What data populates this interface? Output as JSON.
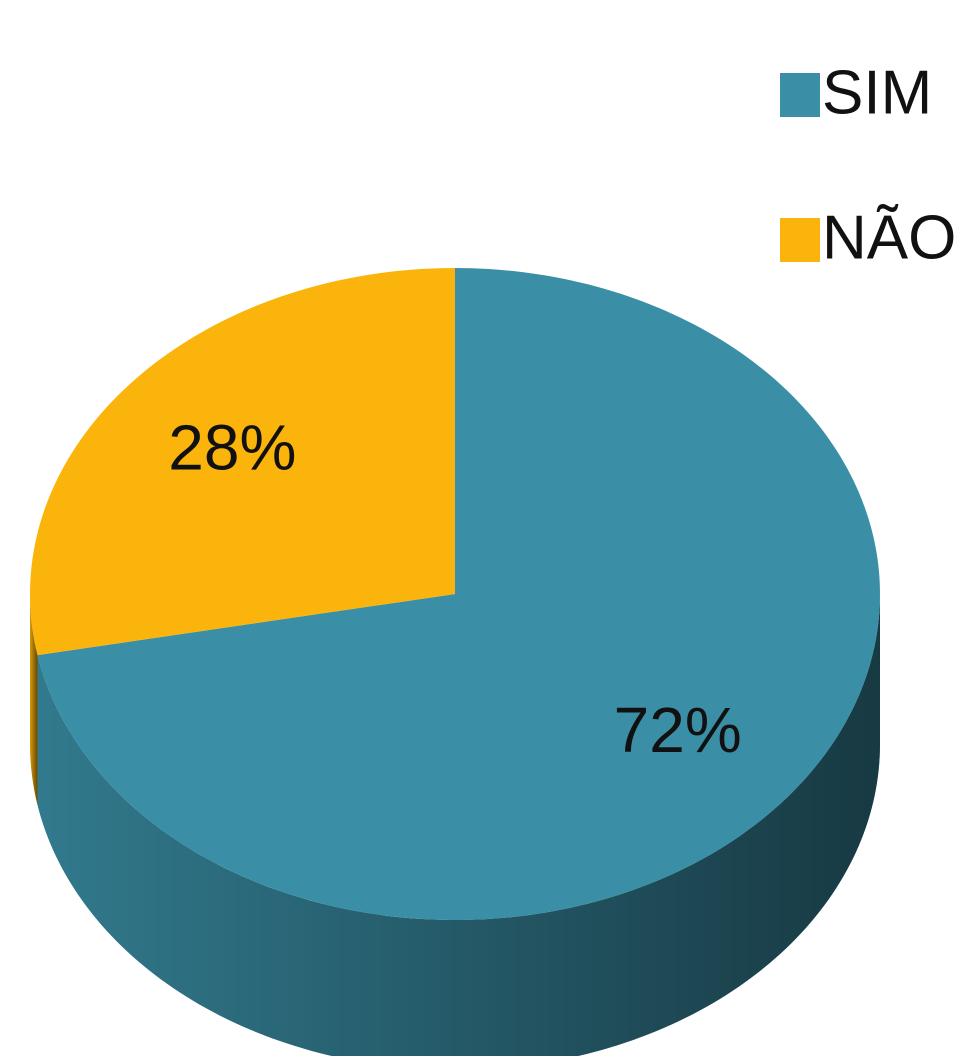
{
  "chart_data": {
    "type": "pie",
    "categories": [
      "SIM",
      "NÃO"
    ],
    "values": [
      72,
      28
    ],
    "value_labels": [
      "72%",
      "28%"
    ],
    "colors": [
      "#3a8fa6",
      "#fbb40c"
    ],
    "legend": "top-right"
  }
}
